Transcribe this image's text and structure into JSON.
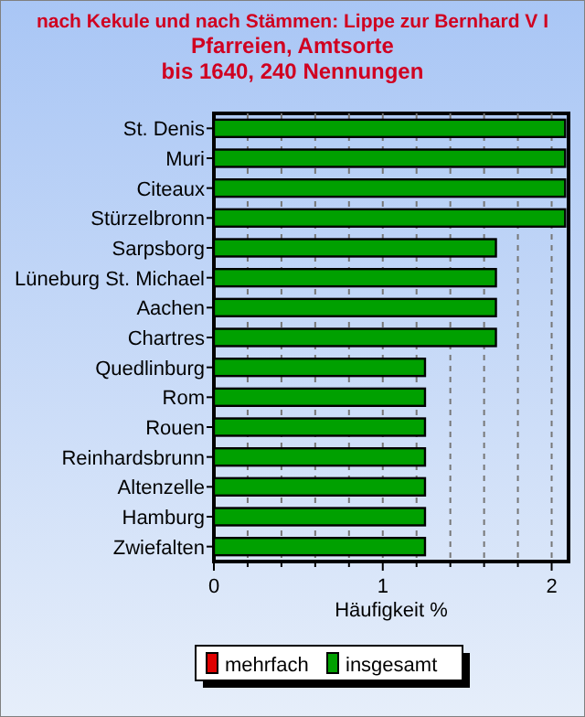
{
  "chart_data": {
    "type": "bar",
    "orientation": "horizontal",
    "title": "nach Kekule und nach Stämmen: Lippe zur Bernhard V I\nPfarreien, Amtsorte\nbis 1640, 240 Nennungen",
    "categories": [
      "St. Denis",
      "Muri",
      "Citeaux",
      "Stürzelbronn",
      "Sarpsborg",
      "Lüneburg St. Michael",
      "Aachen",
      "Chartres",
      "Quedlinburg",
      "Rom",
      "Rouen",
      "Reinhardsbrunn",
      "Altenzelle",
      "Hamburg",
      "Zwiefalten"
    ],
    "series": [
      {
        "name": "mehrfach",
        "color": "#e00000",
        "values": [
          0,
          0,
          0,
          0,
          0,
          0,
          0,
          0,
          0,
          0,
          0,
          0,
          0,
          0,
          0
        ]
      },
      {
        "name": "insgesamt",
        "color": "#00a000",
        "values": [
          2.08,
          2.08,
          2.08,
          2.08,
          1.67,
          1.67,
          1.67,
          1.67,
          1.25,
          1.25,
          1.25,
          1.25,
          1.25,
          1.25,
          1.25
        ]
      }
    ],
    "xlabel": "Häufigkeit %",
    "xlim": [
      0,
      2.1
    ],
    "xticks": [
      0,
      {
        "value": 0.2,
        "label": null
      },
      {
        "value": 0.4,
        "label": null
      },
      {
        "value": 0.6,
        "label": null
      },
      {
        "value": 0.8,
        "label": null
      },
      1,
      {
        "value": 1.2,
        "label": null
      },
      {
        "value": 1.4,
        "label": null
      },
      {
        "value": 1.6,
        "label": null
      },
      {
        "value": 1.8,
        "label": null
      },
      2
    ],
    "grid": "x",
    "legend": "bottom"
  }
}
